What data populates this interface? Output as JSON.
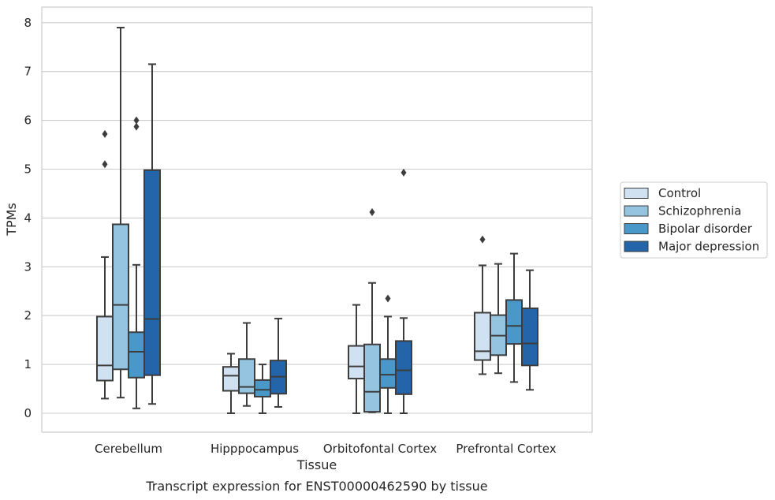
{
  "chart_data": {
    "type": "box",
    "title": "",
    "caption": "Transcript expression for ENST00000462590 by tissue",
    "xlabel": "Tissue",
    "ylabel": "TPMs",
    "ylim": [
      -0.38,
      8.3
    ],
    "yticks": [
      0,
      1,
      2,
      3,
      4,
      5,
      6,
      7,
      8
    ],
    "grid": "horizontal",
    "legend_position": "center-right outside",
    "categories": [
      "Cerebellum",
      "Hipppocampus",
      "Orbitofontal Cortex",
      "Prefrontal Cortex"
    ],
    "series": [
      {
        "name": "Control",
        "color": "#d0e1f2",
        "boxes": [
          {
            "whislo": 0.3,
            "q1": 0.67,
            "med": 0.98,
            "q3": 1.98,
            "whishi": 3.2,
            "fliers": [
              5.1,
              5.72
            ]
          },
          {
            "whislo": 0.0,
            "q1": 0.46,
            "med": 0.77,
            "q3": 0.95,
            "whishi": 1.22,
            "fliers": []
          },
          {
            "whislo": 0.0,
            "q1": 0.71,
            "med": 0.96,
            "q3": 1.38,
            "whishi": 2.22,
            "fliers": []
          },
          {
            "whislo": 0.8,
            "q1": 1.09,
            "med": 1.27,
            "q3": 2.06,
            "whishi": 3.03,
            "fliers": [
              3.56
            ]
          }
        ]
      },
      {
        "name": "Schizophrenia",
        "color": "#94c4df",
        "boxes": [
          {
            "whislo": 0.32,
            "q1": 0.9,
            "med": 2.22,
            "q3": 3.87,
            "whishi": 7.9,
            "fliers": []
          },
          {
            "whislo": 0.15,
            "q1": 0.41,
            "med": 0.54,
            "q3": 1.11,
            "whishi": 1.85,
            "fliers": []
          },
          {
            "whislo": 0.02,
            "q1": 0.03,
            "med": 0.44,
            "q3": 1.41,
            "whishi": 2.67,
            "fliers": [
              4.12
            ]
          },
          {
            "whislo": 0.82,
            "q1": 1.19,
            "med": 1.59,
            "q3": 2.01,
            "whishi": 3.06,
            "fliers": []
          }
        ]
      },
      {
        "name": "Bipolar disorder",
        "color": "#4a98c9",
        "boxes": [
          {
            "whislo": 0.1,
            "q1": 0.73,
            "med": 1.26,
            "q3": 1.66,
            "whishi": 3.04,
            "fliers": [
              5.87,
              6.0
            ]
          },
          {
            "whislo": 0.0,
            "q1": 0.34,
            "med": 0.48,
            "q3": 0.68,
            "whishi": 1.0,
            "fliers": []
          },
          {
            "whislo": 0.0,
            "q1": 0.52,
            "med": 0.79,
            "q3": 1.11,
            "whishi": 1.98,
            "fliers": [
              2.35
            ]
          },
          {
            "whislo": 0.64,
            "q1": 1.42,
            "med": 1.79,
            "q3": 2.32,
            "whishi": 3.27,
            "fliers": []
          }
        ]
      },
      {
        "name": "Major depression",
        "color": "#2464a8",
        "boxes": [
          {
            "whislo": 0.19,
            "q1": 0.78,
            "med": 1.93,
            "q3": 4.98,
            "whishi": 7.15,
            "fliers": []
          },
          {
            "whislo": 0.13,
            "q1": 0.4,
            "med": 0.75,
            "q3": 1.08,
            "whishi": 1.94,
            "fliers": []
          },
          {
            "whislo": 0.0,
            "q1": 0.39,
            "med": 0.88,
            "q3": 1.48,
            "whishi": 1.95,
            "fliers": [
              4.93
            ]
          },
          {
            "whislo": 0.48,
            "q1": 0.98,
            "med": 1.43,
            "q3": 2.15,
            "whishi": 2.93,
            "fliers": []
          }
        ]
      }
    ]
  }
}
